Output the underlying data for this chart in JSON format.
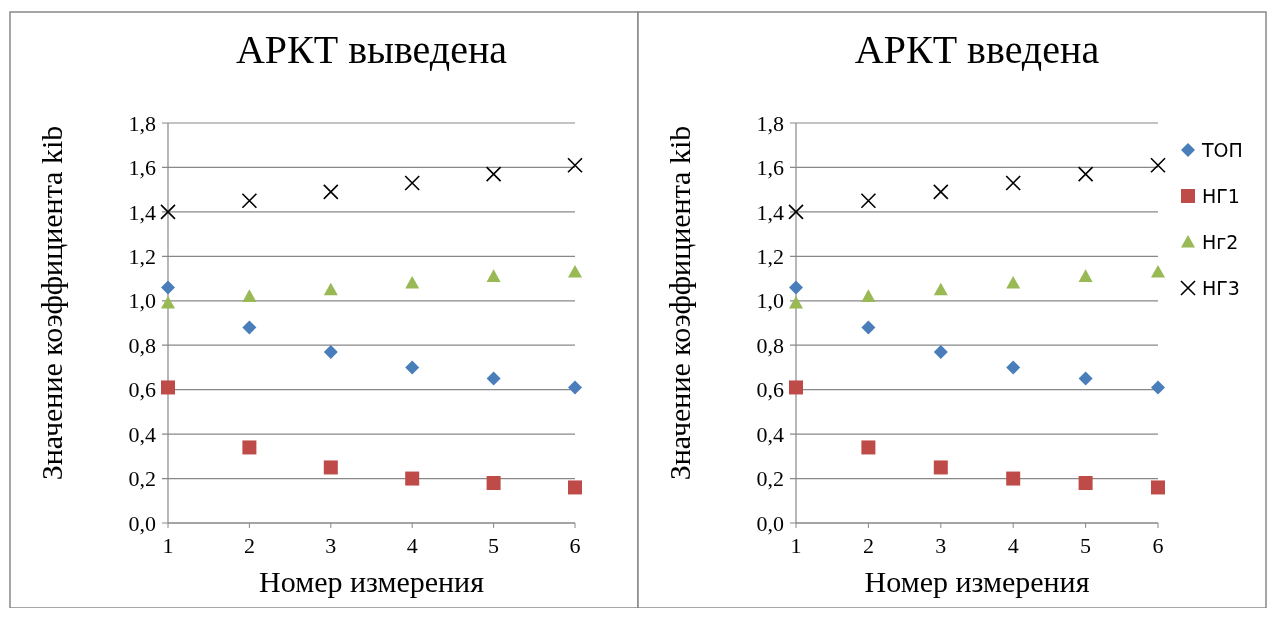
{
  "chart_data": [
    {
      "type": "scatter",
      "title": "АРКТ выведена",
      "xlabel": "Номер измерения",
      "ylabel": "Значение коэффициента kib",
      "x": [
        1,
        2,
        3,
        4,
        5,
        6
      ],
      "xlim": [
        1,
        6
      ],
      "xticks": [
        1,
        2,
        3,
        4,
        5,
        6
      ],
      "ylim": [
        0,
        1.8
      ],
      "yticks": [
        {
          "value": 0,
          "label": "0,0"
        },
        {
          "value": 0.2,
          "label": "0,2"
        },
        {
          "value": 0.4,
          "label": "0,4"
        },
        {
          "value": 0.6,
          "label": "0,6"
        },
        {
          "value": 0.8,
          "label": "0,8"
        },
        {
          "value": 1.0,
          "label": "1,0"
        },
        {
          "value": 1.2,
          "label": "1,2"
        },
        {
          "value": 1.4,
          "label": "1,4"
        },
        {
          "value": 1.6,
          "label": "1,6"
        },
        {
          "value": 1.8,
          "label": "1,8"
        }
      ],
      "grid": "y",
      "legend": false,
      "series": [
        {
          "color": "#4a7ebb",
          "marker": "diamond",
          "values": [
            1.06,
            0.88,
            0.77,
            0.7,
            0.65,
            0.61
          ]
        },
        {
          "color": "#be4b48",
          "marker": "square",
          "values": [
            0.61,
            0.34,
            0.25,
            0.2,
            0.18,
            0.16
          ]
        },
        {
          "color": "#98b954",
          "marker": "triangle",
          "values": [
            0.99,
            1.02,
            1.05,
            1.08,
            1.11,
            1.13
          ]
        },
        {
          "color": "#000000",
          "marker": "cross",
          "values": [
            1.4,
            1.45,
            1.49,
            1.53,
            1.57,
            1.61
          ]
        }
      ]
    },
    {
      "type": "scatter",
      "title": "АРКТ введена",
      "xlabel": "Номер измерения",
      "ylabel": "Значение коэффициента kib",
      "x": [
        1,
        2,
        3,
        4,
        5,
        6
      ],
      "xlim": [
        1,
        6
      ],
      "xticks": [
        1,
        2,
        3,
        4,
        5,
        6
      ],
      "ylim": [
        0,
        1.8
      ],
      "yticks": [
        {
          "value": 0,
          "label": "0,0"
        },
        {
          "value": 0.2,
          "label": "0,2"
        },
        {
          "value": 0.4,
          "label": "0,4"
        },
        {
          "value": 0.6,
          "label": "0,6"
        },
        {
          "value": 0.8,
          "label": "0,8"
        },
        {
          "value": 1.0,
          "label": "1,0"
        },
        {
          "value": 1.2,
          "label": "1,2"
        },
        {
          "value": 1.4,
          "label": "1,4"
        },
        {
          "value": 1.6,
          "label": "1,6"
        },
        {
          "value": 1.8,
          "label": "1,8"
        }
      ],
      "grid": "y",
      "legend": "right",
      "series": [
        {
          "name": "ТОП",
          "color": "#4a7ebb",
          "marker": "diamond",
          "values": [
            1.06,
            0.88,
            0.77,
            0.7,
            0.65,
            0.61
          ]
        },
        {
          "name": "НГ1",
          "color": "#be4b48",
          "marker": "square",
          "values": [
            0.61,
            0.34,
            0.25,
            0.2,
            0.18,
            0.16
          ]
        },
        {
          "name": "Нг2",
          "color": "#98b954",
          "marker": "triangle",
          "values": [
            0.99,
            1.02,
            1.05,
            1.08,
            1.11,
            1.13
          ]
        },
        {
          "name": "НГ3",
          "color": "#000000",
          "marker": "cross",
          "values": [
            1.4,
            1.45,
            1.49,
            1.53,
            1.57,
            1.61
          ]
        }
      ]
    }
  ]
}
